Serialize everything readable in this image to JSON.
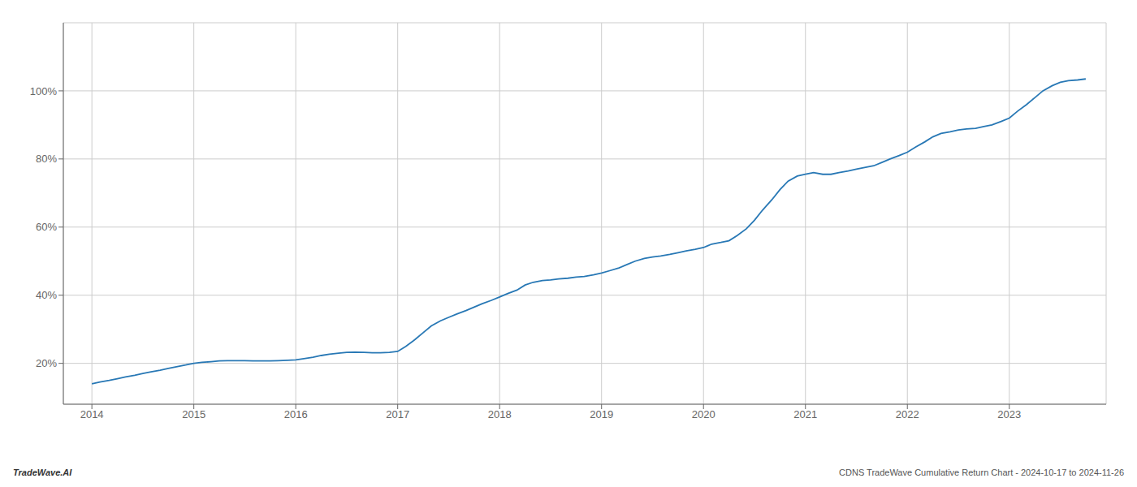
{
  "chart_data": {
    "type": "line",
    "color": "#2878b5",
    "grid": true,
    "annotations": [
      "TradeWave.AI",
      "CDNS TradeWave Cumulative Return Chart - 2024-10-17 to 2024-11-26"
    ],
    "x": [
      2014.0,
      2014.08,
      2014.17,
      2014.25,
      2014.33,
      2014.42,
      2014.5,
      2014.58,
      2014.67,
      2014.75,
      2014.83,
      2014.92,
      2015.0,
      2015.08,
      2015.17,
      2015.25,
      2015.33,
      2015.42,
      2015.5,
      2015.58,
      2015.67,
      2015.75,
      2015.83,
      2015.92,
      2016.0,
      2016.08,
      2016.17,
      2016.25,
      2016.33,
      2016.42,
      2016.5,
      2016.58,
      2016.67,
      2016.75,
      2016.83,
      2016.92,
      2017.0,
      2017.08,
      2017.17,
      2017.25,
      2017.33,
      2017.42,
      2017.5,
      2017.58,
      2017.67,
      2017.75,
      2017.83,
      2017.92,
      2018.0,
      2018.08,
      2018.17,
      2018.25,
      2018.33,
      2018.42,
      2018.5,
      2018.58,
      2018.67,
      2018.75,
      2018.83,
      2018.92,
      2019.0,
      2019.08,
      2019.17,
      2019.25,
      2019.33,
      2019.42,
      2019.5,
      2019.58,
      2019.67,
      2019.75,
      2019.83,
      2019.92,
      2020.0,
      2020.04,
      2020.08,
      2020.17,
      2020.25,
      2020.33,
      2020.42,
      2020.5,
      2020.58,
      2020.67,
      2020.75,
      2020.83,
      2020.92,
      2021.0,
      2021.08,
      2021.17,
      2021.25,
      2021.33,
      2021.42,
      2021.5,
      2021.58,
      2021.67,
      2021.75,
      2021.83,
      2021.92,
      2022.0,
      2022.08,
      2022.17,
      2022.25,
      2022.33,
      2022.42,
      2022.5,
      2022.58,
      2022.67,
      2022.75,
      2022.83,
      2022.92,
      2023.0,
      2023.08,
      2023.17,
      2023.25,
      2023.33,
      2023.42,
      2023.5,
      2023.58,
      2023.67,
      2023.75
    ],
    "values": [
      14.0,
      14.5,
      15.0,
      15.5,
      16.0,
      16.5,
      17.0,
      17.5,
      18.0,
      18.5,
      19.0,
      19.5,
      20.0,
      20.3,
      20.5,
      20.7,
      20.8,
      20.8,
      20.8,
      20.7,
      20.7,
      20.7,
      20.8,
      20.9,
      21.0,
      21.4,
      21.8,
      22.3,
      22.7,
      23.0,
      23.2,
      23.3,
      23.2,
      23.1,
      23.1,
      23.2,
      23.5,
      25.0,
      27.0,
      29.0,
      31.0,
      32.5,
      33.5,
      34.5,
      35.5,
      36.5,
      37.5,
      38.5,
      39.5,
      40.5,
      41.5,
      43.0,
      43.8,
      44.3,
      44.5,
      44.8,
      45.0,
      45.3,
      45.5,
      46.0,
      46.5,
      47.2,
      48.0,
      49.0,
      50.0,
      50.8,
      51.2,
      51.5,
      52.0,
      52.5,
      53.0,
      53.5,
      54.0,
      54.5,
      55.0,
      55.5,
      56.0,
      57.5,
      59.5,
      62.0,
      65.0,
      68.0,
      71.0,
      73.5,
      75.0,
      75.5,
      76.0,
      75.5,
      75.5,
      76.0,
      76.5,
      77.0,
      77.5,
      78.0,
      79.0,
      80.0,
      81.0,
      82.0,
      83.5,
      85.0,
      86.5,
      87.5,
      88.0,
      88.5,
      88.8,
      89.0,
      89.5,
      90.0,
      91.0,
      92.0,
      94.0,
      96.0,
      98.0,
      100.0,
      101.5,
      102.5,
      103.0,
      103.2,
      103.5
    ],
    "xlim": [
      2013.72,
      2023.95
    ],
    "ylim": [
      8,
      120
    ],
    "xticks": [
      2014,
      2015,
      2016,
      2017,
      2018,
      2019,
      2020,
      2021,
      2022,
      2023
    ],
    "yticks": [
      {
        "value": 20,
        "label": "20%"
      },
      {
        "value": 40,
        "label": "40%"
      },
      {
        "value": 60,
        "label": "60%"
      },
      {
        "value": 80,
        "label": "80%"
      },
      {
        "value": 100,
        "label": "100%"
      }
    ]
  }
}
